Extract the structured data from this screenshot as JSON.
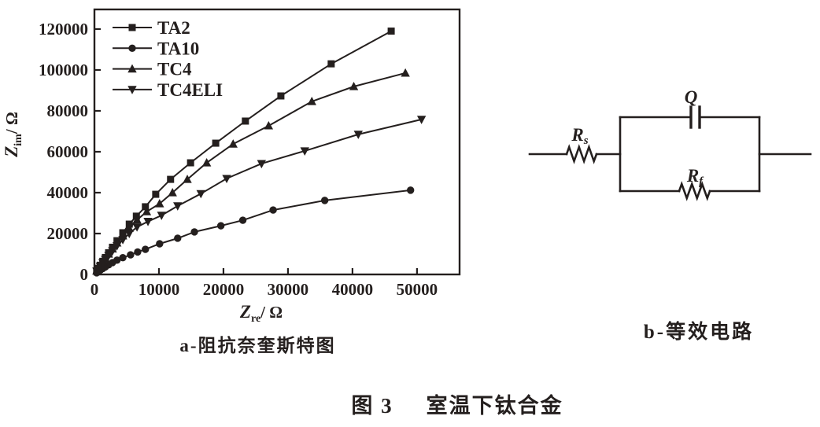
{
  "colors": {
    "ink": "#241f1e",
    "background": "#ffffff"
  },
  "figure": {
    "caption_prefix": "图 3",
    "caption_text": "室温下钛合金",
    "panel_a_caption": "a-阻抗奈奎斯特图",
    "panel_b_caption": "b-等效电路"
  },
  "chart_data": {
    "type": "scatter",
    "title": "",
    "xlabel": {
      "symbol": "Z",
      "subscript": "re",
      "unit": "/ Ω"
    },
    "ylabel": {
      "symbol": "Z",
      "subscript": "im",
      "unit": "/ Ω"
    },
    "xlim": [
      0,
      56600
    ],
    "ylim": [
      0,
      129600
    ],
    "x_ticks": [
      0,
      10000,
      20000,
      30000,
      40000,
      50000
    ],
    "y_ticks": [
      0,
      20000,
      40000,
      60000,
      80000,
      100000,
      120000
    ],
    "grid": false,
    "legend_position": "inside-top-left",
    "series": [
      {
        "name": "TA2",
        "marker": "square",
        "points": [
          [
            350,
            1800
          ],
          [
            600,
            3000
          ],
          [
            900,
            4500
          ],
          [
            1300,
            6400
          ],
          [
            1700,
            8300
          ],
          [
            2200,
            10600
          ],
          [
            2800,
            13300
          ],
          [
            3500,
            16500
          ],
          [
            4400,
            20400
          ],
          [
            5400,
            24600
          ],
          [
            6500,
            28500
          ],
          [
            7900,
            33100
          ],
          [
            9500,
            39200
          ],
          [
            11800,
            46500
          ],
          [
            14900,
            54600
          ],
          [
            18800,
            64200
          ],
          [
            23400,
            75000
          ],
          [
            28900,
            87300
          ],
          [
            36700,
            103000
          ],
          [
            46000,
            119000
          ]
        ]
      },
      {
        "name": "TA10",
        "marker": "circle",
        "points": [
          [
            350,
            800
          ],
          [
            600,
            1400
          ],
          [
            900,
            2100
          ],
          [
            1300,
            2900
          ],
          [
            1700,
            3700
          ],
          [
            2200,
            4700
          ],
          [
            2800,
            5800
          ],
          [
            3500,
            7000
          ],
          [
            4400,
            8200
          ],
          [
            5600,
            9600
          ],
          [
            6700,
            11000
          ],
          [
            7900,
            12300
          ],
          [
            10100,
            15000
          ],
          [
            12900,
            17700
          ],
          [
            15500,
            20800
          ],
          [
            19600,
            23800
          ],
          [
            23000,
            26500
          ],
          [
            27700,
            31500
          ],
          [
            35700,
            36200
          ],
          [
            49000,
            41200
          ]
        ]
      },
      {
        "name": "TC4",
        "marker": "triangle-up",
        "points": [
          [
            350,
            1700
          ],
          [
            600,
            2900
          ],
          [
            900,
            4300
          ],
          [
            1300,
            6100
          ],
          [
            1700,
            7900
          ],
          [
            2200,
            10000
          ],
          [
            2800,
            12500
          ],
          [
            3500,
            15400
          ],
          [
            4400,
            18900
          ],
          [
            5400,
            22600
          ],
          [
            6600,
            26700
          ],
          [
            8100,
            30700
          ],
          [
            10100,
            34600
          ],
          [
            12100,
            40000
          ],
          [
            14400,
            46500
          ],
          [
            17400,
            54600
          ],
          [
            21500,
            63800
          ],
          [
            27000,
            72700
          ],
          [
            33700,
            84600
          ],
          [
            40200,
            91900
          ],
          [
            48200,
            98500
          ]
        ]
      },
      {
        "name": "TC4ELI",
        "marker": "triangle-down",
        "points": [
          [
            350,
            1600
          ],
          [
            600,
            2700
          ],
          [
            900,
            4000
          ],
          [
            1300,
            5700
          ],
          [
            1700,
            7300
          ],
          [
            2200,
            9200
          ],
          [
            2800,
            11500
          ],
          [
            3500,
            14000
          ],
          [
            4400,
            17000
          ],
          [
            5400,
            20000
          ],
          [
            6600,
            23200
          ],
          [
            8300,
            25900
          ],
          [
            10400,
            28900
          ],
          [
            12900,
            33500
          ],
          [
            16500,
            39500
          ],
          [
            20500,
            46900
          ],
          [
            25900,
            54200
          ],
          [
            32600,
            60400
          ],
          [
            40900,
            68500
          ],
          [
            50700,
            75800
          ]
        ]
      }
    ]
  },
  "circuit": {
    "rs": {
      "label": "R",
      "sub": "s"
    },
    "q": {
      "label": "Q"
    },
    "rf": {
      "label": "R",
      "sub": "f"
    }
  }
}
